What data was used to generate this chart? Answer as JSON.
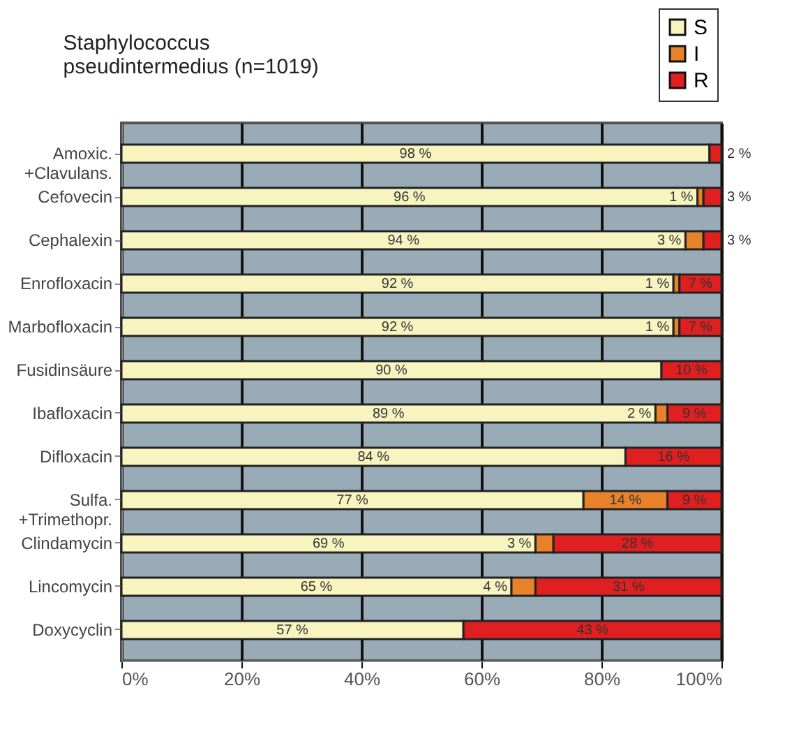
{
  "chart_data": {
    "type": "bar",
    "orientation": "horizontal",
    "stacked": true,
    "title": "Staphylococcus pseudintermedius (n=1019)",
    "categories": [
      "Amoxic.\n+Clavulans.",
      "Cefovecin",
      "Cephalexin",
      "Enrofloxacin",
      "Marbofloxacin",
      "Fusidinsäure",
      "Ibafloxacin",
      "Difloxacin",
      "Sulfa.\n+Trimethopr.",
      "Clindamycin",
      "Lincomycin",
      "Doxycyclin"
    ],
    "series": [
      {
        "name": "S",
        "color": "#f8f4c0",
        "values": [
          98,
          96,
          94,
          92,
          92,
          90,
          89,
          84,
          77,
          69,
          65,
          57
        ],
        "value_labels": [
          "98 %",
          "96 %",
          "94 %",
          "92 %",
          "92 %",
          "90 %",
          "89 %",
          "84 %",
          "77 %",
          "69 %",
          "65 %",
          "57 %"
        ]
      },
      {
        "name": "I",
        "color": "#e8822a",
        "values": [
          0,
          1,
          3,
          1,
          1,
          0,
          2,
          0,
          14,
          3,
          4,
          0
        ],
        "value_labels": [
          null,
          "1 %",
          "3 %",
          "1 %",
          "1 %",
          null,
          "2 %",
          null,
          "14 %",
          "3 %",
          "4 %",
          null
        ]
      },
      {
        "name": "R",
        "color": "#e02020",
        "values": [
          2,
          3,
          3,
          7,
          7,
          10,
          9,
          16,
          9,
          28,
          31,
          43
        ],
        "value_labels": [
          "2 %",
          "3 %",
          "3 %",
          "7 %",
          "7 %",
          "10 %",
          "9 %",
          "16 %",
          "9 %",
          "28 %",
          "31 %",
          "43 %"
        ]
      }
    ],
    "xlim": [
      0,
      100
    ],
    "xticks": [
      {
        "value": 0,
        "label": "0%"
      },
      {
        "value": 20,
        "label": "20%"
      },
      {
        "value": 40,
        "label": "40%"
      },
      {
        "value": 60,
        "label": "60%"
      },
      {
        "value": 80,
        "label": "80%"
      },
      {
        "value": 100,
        "label": "100%"
      }
    ],
    "grid": "x",
    "legend": "top right"
  }
}
